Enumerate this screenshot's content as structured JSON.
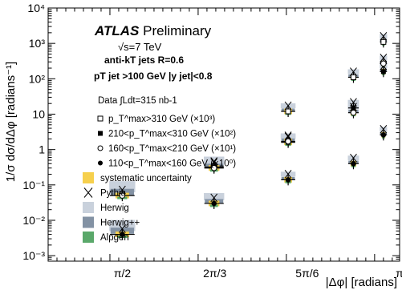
{
  "chart_data": {
    "type": "scatter",
    "title": "ATLAS Preliminary",
    "annotations": [
      "√s=7 TeV",
      "anti-kT jets R=0.6",
      "pT jet >100 GeV |y jet|<0.8",
      "Data ∫Ldt=315 nb-1"
    ],
    "xlabel": "|Δφ| [radians]",
    "ylabel": "1/σ dσ/dΔφ [radians⁻¹]",
    "y_scale": "log",
    "ylim": [
      0.0007,
      10000
    ],
    "xlim": [
      1.15,
      3.1416
    ],
    "x_tick_labels": [
      "π/2",
      "2π/3",
      "5π/6",
      "π"
    ],
    "y_tick_labels": [
      "10⁻³",
      "10⁻²",
      "10⁻¹",
      "1",
      "10",
      "10²",
      "10³",
      "10⁴"
    ],
    "x": [
      1.57,
      2.09,
      2.51,
      2.88,
      3.05
    ],
    "series": [
      {
        "name": "p_T^max>310 GeV (×10³)",
        "marker": "open-square",
        "values": [
          null,
          null,
          12,
          110,
          1100
        ]
      },
      {
        "name": "210<p_T^max<310 GeV (×10²)",
        "marker": "filled-square",
        "values": [
          null,
          0.32,
          1.6,
          15,
          160
        ]
      },
      {
        "name": "160<p_T^max<210 GeV (×10¹)",
        "marker": "open-circle",
        "values": [
          0.05,
          0.3,
          1.7,
          11,
          270
        ]
      },
      {
        "name": "110<p_T^max<160 GeV (×10⁰)",
        "marker": "filled-circle",
        "values": [
          0.004,
          0.03,
          0.14,
          0.4,
          2.6
        ]
      }
    ],
    "model_series": [
      {
        "name": "Pythia",
        "marker": "x"
      },
      {
        "name": "Herwig",
        "color": "#c9d1dc"
      },
      {
        "name": "Herwig++",
        "color": "#8392a4"
      },
      {
        "name": "Alpgen",
        "color": "#5aa86a"
      }
    ],
    "band": {
      "name": "systematic uncertainty",
      "color": "#f6d04d"
    },
    "legend_position": "left"
  }
}
